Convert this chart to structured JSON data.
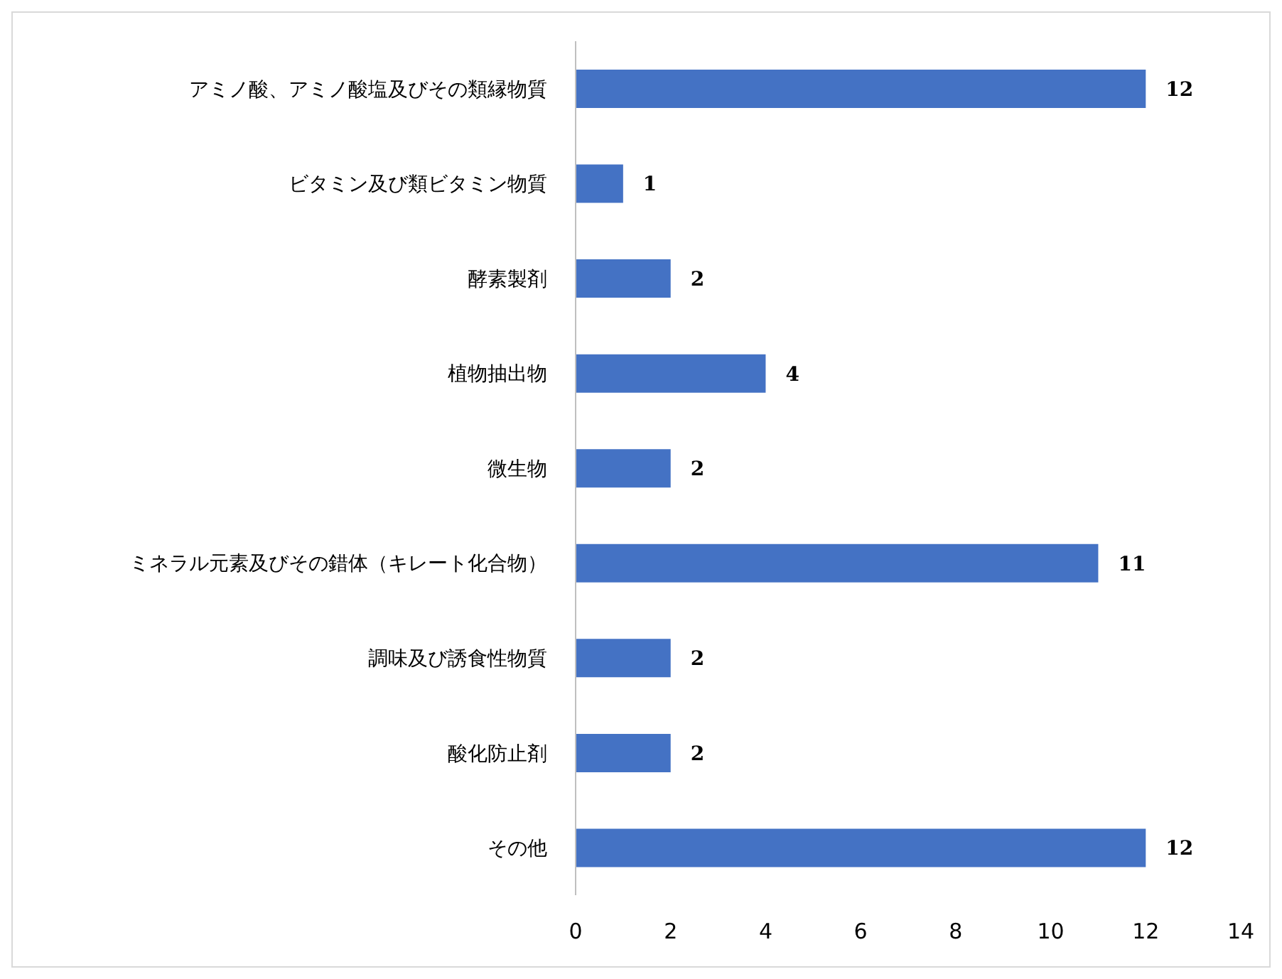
{
  "chart_data": {
    "type": "bar",
    "orientation": "horizontal",
    "categories": [
      "アミノ酸、アミノ酸塩及びその類縁物質",
      "ビタミン及び類ビタミン物質",
      "酵素製剤",
      "植物抽出物",
      "微生物",
      "ミネラル元素及びその錯体（キレート化合物）",
      "調味及び誘食性物質",
      "酸化防止剤",
      "その他"
    ],
    "values": [
      12,
      1,
      2,
      4,
      2,
      11,
      2,
      2,
      12
    ],
    "color": "#4472c4",
    "xlim": [
      0,
      14
    ],
    "xticks": [
      0,
      2,
      4,
      6,
      8,
      10,
      12,
      14
    ],
    "data_labels": true
  }
}
